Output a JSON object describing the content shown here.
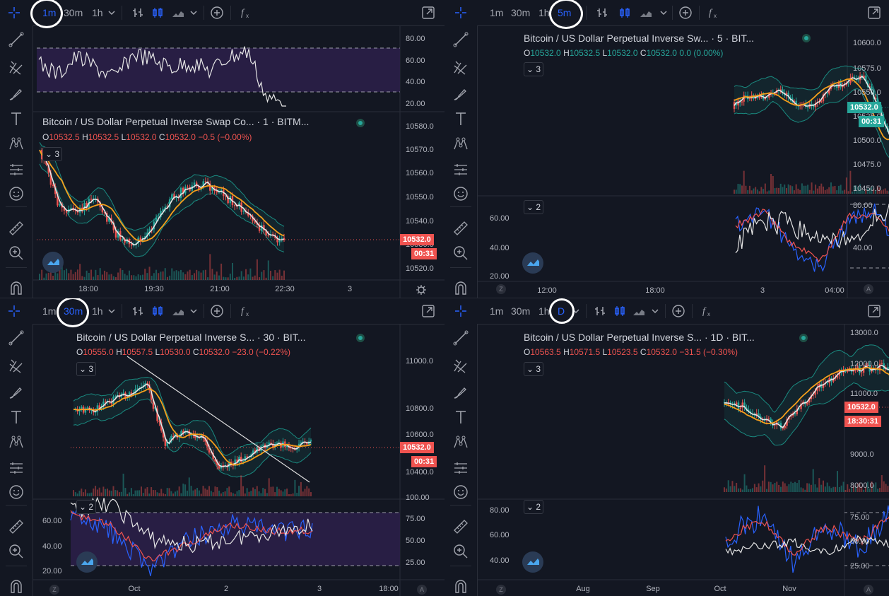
{
  "toolbar_icons": [
    "crosshair-icon",
    "bar-style-icon",
    "candles-icon",
    "area-icon",
    "chevron-down-icon",
    "indicators-plus-icon",
    "fx-icon",
    "fullscreen-icon"
  ],
  "sidebar_icons": [
    "crosshair-icon",
    "trend-line-icon",
    "pitchfork-icon",
    "brush-icon",
    "text-icon",
    "pattern-icon",
    "prediction-icon",
    "emoji-icon",
    "ruler-icon",
    "zoom-in-icon",
    "magnet-icon"
  ],
  "colors": {
    "up": "#26a69a",
    "down": "#ef5350",
    "ma": "#f59f1b",
    "bb": "#1a8a80",
    "rsi": "#7e57c2",
    "white": "#e6e6e6"
  },
  "panes": [
    {
      "intervals": [
        "1m",
        "30m",
        "1h"
      ],
      "active_interval": "1m",
      "title": "Bitcoin / US Dollar Perpetual Inverse Swap Co...  · 1 · BITM...",
      "ohlc": {
        "o": "O",
        "ov": "10532.5",
        "h": "H",
        "hv": "10532.5",
        "l": "L",
        "lv": "10532.0",
        "c": "C",
        "cv": "10532.0",
        "chg": "−0.5 (−0.00%)"
      },
      "collapse_label": "3",
      "price_badge": "10532.0",
      "timer_badge": "00:31",
      "price_axis": [
        "10580.0",
        "10570.0",
        "10560.0",
        "10550.0",
        "10540.0",
        "10530.0",
        "10520.0"
      ],
      "osc_axis": [
        "80.00",
        "60.00",
        "40.00",
        "20.00"
      ],
      "time_axis": [
        "18:00",
        "19:30",
        "21:00",
        "22:30",
        "3"
      ]
    },
    {
      "intervals": [
        "1m",
        "30m",
        "1h",
        "5m"
      ],
      "active_interval": "5m",
      "title": "Bitcoin / US Dollar Perpetual Inverse Sw...  · 5 · BIT...",
      "ohlc": {
        "o": "O",
        "ov": "10532.0",
        "h": "H",
        "hv": "10532.5",
        "l": "L",
        "lv": "10532.0",
        "c": "C",
        "cv": "10532.0",
        "chg": "0.0 (0.00%)"
      },
      "collapse_label": "3",
      "osc_collapse_label": "2",
      "price_badge": "10532.0",
      "timer_badge": "00:31",
      "price_axis": [
        "10600.0",
        "10575.0",
        "10550.0",
        "10525.0",
        "10500.0",
        "10475.0",
        "10450.0"
      ],
      "osc_left_axis": [
        "60.00",
        "40.00",
        "20.00"
      ],
      "osc_right_axis": [
        "80.00",
        "40.00"
      ],
      "time_axis": [
        "12:00",
        "18:00",
        "3",
        "04:00"
      ],
      "corner_left": "Z",
      "corner_right": "A"
    },
    {
      "intervals": [
        "1m",
        "30m",
        "1h"
      ],
      "active_interval": "30m",
      "title": "Bitcoin / US Dollar Perpetual Inverse S...  · 30 · BIT...",
      "ohlc": {
        "o": "O",
        "ov": "10555.0",
        "h": "H",
        "hv": "10557.5",
        "l": "L",
        "lv": "10530.0",
        "c": "C",
        "cv": "10532.0",
        "chg": "−23.0 (−0.22%)"
      },
      "collapse_label": "3",
      "osc_collapse_label": "2",
      "price_badge": "10532.0",
      "timer_badge": "00:31",
      "price_axis": [
        "11000.0",
        "10800.0",
        "10600.0",
        "10400.0"
      ],
      "osc_left_axis": [
        "60.00",
        "40.00",
        "20.00"
      ],
      "osc_right_axis": [
        "100.00",
        "75.00",
        "50.00",
        "25.00"
      ],
      "time_axis": [
        "Oct",
        "2",
        "3",
        "18:00"
      ],
      "corner_left": "Z",
      "corner_right": "A"
    },
    {
      "intervals": [
        "1m",
        "30m",
        "1h",
        "D"
      ],
      "active_interval": "D",
      "title": "Bitcoin / US Dollar Perpetual Inverse S...  · 1D · BIT...",
      "ohlc": {
        "o": "O",
        "ov": "10563.5",
        "h": "H",
        "hv": "10571.5",
        "l": "L",
        "lv": "10523.5",
        "c": "C",
        "cv": "10532.0",
        "chg": "−31.5 (−0.30%)"
      },
      "collapse_label": "3",
      "osc_collapse_label": "2",
      "price_badge": "10532.0",
      "timer_badge": "18:30:31",
      "price_axis": [
        "13000.0",
        "12000.0",
        "11000.0",
        "10000.0",
        "9000.0",
        "8000.0"
      ],
      "osc_left_axis": [
        "80.00",
        "60.00",
        "40.00"
      ],
      "osc_right_axis": [
        "75.00",
        "50.00",
        "25.00"
      ],
      "time_axis": [
        "Aug",
        "Sep",
        "Oct",
        "Nov"
      ],
      "corner_left": "Z",
      "corner_right": "A"
    }
  ]
}
